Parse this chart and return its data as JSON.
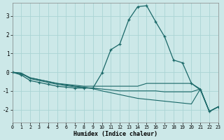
{
  "xlabel": "Humidex (Indice chaleur)",
  "background_color": "#cce8e8",
  "grid_color": "#aad4d4",
  "line_color": "#1a6868",
  "xlim": [
    0,
    23
  ],
  "ylim": [
    -2.7,
    3.7
  ],
  "yticks": [
    -2,
    -1,
    0,
    1,
    2,
    3
  ],
  "xticks": [
    0,
    1,
    2,
    3,
    4,
    5,
    6,
    7,
    8,
    9,
    10,
    11,
    12,
    13,
    14,
    15,
    16,
    17,
    18,
    19,
    20,
    21,
    22,
    23
  ],
  "main_x": [
    0,
    1,
    2,
    3,
    4,
    5,
    6,
    7,
    8,
    9,
    10,
    11,
    12,
    13,
    14,
    15,
    16,
    17,
    18,
    19,
    20,
    21,
    22,
    23
  ],
  "main_y": [
    0.0,
    -0.15,
    -0.45,
    -0.55,
    -0.65,
    -0.75,
    -0.8,
    -0.85,
    -0.85,
    -0.85,
    -0.05,
    1.2,
    1.5,
    2.8,
    3.5,
    3.55,
    2.7,
    1.9,
    0.65,
    0.5,
    -0.6,
    -0.95,
    -2.1,
    -1.85
  ],
  "extra_lines": [
    {
      "x": [
        0,
        1,
        2,
        3,
        4,
        5,
        6,
        7,
        8,
        9,
        10,
        11,
        12,
        13,
        14,
        15,
        16,
        17,
        18,
        19,
        20,
        21,
        22,
        23
      ],
      "y": [
        0.0,
        -0.1,
        -0.3,
        -0.4,
        -0.5,
        -0.6,
        -0.65,
        -0.7,
        -0.75,
        -0.75,
        -0.75,
        -0.75,
        -0.75,
        -0.75,
        -0.75,
        -0.6,
        -0.6,
        -0.6,
        -0.6,
        -0.6,
        -0.6,
        -0.9,
        -2.1,
        -1.85
      ]
    },
    {
      "x": [
        0,
        1,
        2,
        3,
        4,
        5,
        6,
        7,
        8,
        9,
        10,
        11,
        12,
        13,
        14,
        15,
        16,
        17,
        18,
        19,
        20,
        21,
        22,
        23
      ],
      "y": [
        0.0,
        -0.05,
        -0.35,
        -0.45,
        -0.55,
        -0.65,
        -0.72,
        -0.78,
        -0.82,
        -0.85,
        -0.9,
        -0.95,
        -1.0,
        -1.0,
        -1.0,
        -1.0,
        -1.0,
        -1.05,
        -1.05,
        -1.05,
        -1.05,
        -0.9,
        -2.1,
        -1.85
      ]
    },
    {
      "x": [
        0,
        1,
        2,
        3,
        4,
        5,
        6,
        7,
        8,
        9,
        10,
        11,
        12,
        13,
        14,
        15,
        16,
        17,
        18,
        19,
        20,
        21,
        22,
        23
      ],
      "y": [
        0.0,
        -0.05,
        -0.3,
        -0.4,
        -0.5,
        -0.6,
        -0.68,
        -0.75,
        -0.8,
        -0.88,
        -1.0,
        -1.1,
        -1.2,
        -1.3,
        -1.4,
        -1.45,
        -1.5,
        -1.55,
        -1.6,
        -1.65,
        -1.7,
        -0.9,
        -2.1,
        -1.85
      ]
    }
  ]
}
